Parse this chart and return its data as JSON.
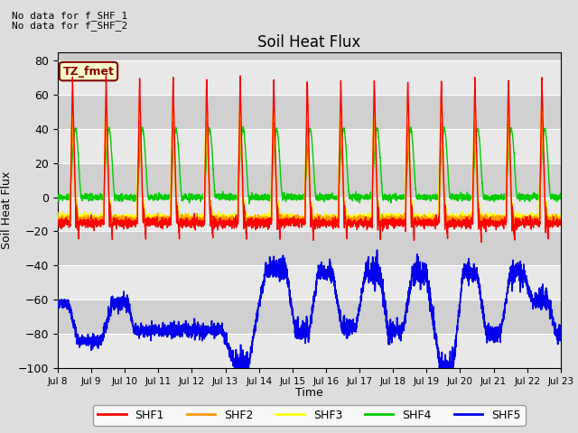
{
  "title": "Soil Heat Flux",
  "xlabel": "Time",
  "ylabel": "Soil Heat Flux",
  "ylim": [
    -100,
    85
  ],
  "yticks": [
    -100,
    -80,
    -60,
    -40,
    -20,
    0,
    20,
    40,
    60,
    80
  ],
  "colors": {
    "SHF1": "#ff0000",
    "SHF2": "#ff9900",
    "SHF3": "#ffff00",
    "SHF4": "#00cc00",
    "SHF5": "#0000ee"
  },
  "legend_labels": [
    "SHF1",
    "SHF2",
    "SHF3",
    "SHF4",
    "SHF5"
  ],
  "annotation_lines": [
    "No data for f_SHF_1",
    "No data for f_SHF_2"
  ],
  "timezone_label": "TZ_fmet",
  "bg_color": "#dddddd",
  "plot_bg_color": "#cccccc",
  "start_day": 8,
  "end_day": 23,
  "n_points": 3000
}
